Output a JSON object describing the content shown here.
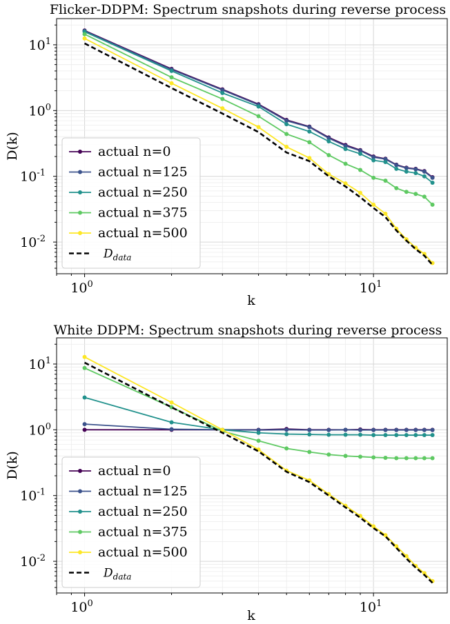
{
  "chart_data": [
    {
      "type": "line",
      "title": "Flicker-DDPM: Spectrum snapshots during reverse process",
      "xlabel": "k",
      "ylabel": "D(k)",
      "xscale": "log",
      "yscale": "log",
      "xlim": [
        0.8,
        18
      ],
      "ylim": [
        0.0033,
        25
      ],
      "xticks": [
        {
          "base": "10",
          "exp": "0",
          "value": 1
        },
        {
          "base": "10",
          "exp": "1",
          "value": 10
        }
      ],
      "yticks": [
        {
          "base": "10",
          "exp": "-2",
          "value": 0.01
        },
        {
          "base": "10",
          "exp": "-1",
          "value": 0.1
        },
        {
          "base": "10",
          "exp": "0",
          "value": 1
        },
        {
          "base": "10",
          "exp": "1",
          "value": 10
        }
      ],
      "grid": true,
      "legend_position": "lower-left",
      "x": [
        1,
        2,
        3,
        4,
        5,
        6,
        7,
        8,
        9,
        10,
        11,
        12,
        13,
        14,
        15,
        16
      ],
      "series": [
        {
          "name": "actual n=0",
          "color": "#440154",
          "style": "solid-markers",
          "values": [
            16.5,
            4.3,
            2.1,
            1.25,
            0.72,
            0.57,
            0.39,
            0.3,
            0.25,
            0.2,
            0.185,
            0.15,
            0.135,
            0.13,
            0.12,
            0.097
          ]
        },
        {
          "name": "actual n=125",
          "color": "#3b528b",
          "style": "solid-markers",
          "values": [
            16.2,
            4.2,
            2.05,
            1.22,
            0.7,
            0.56,
            0.38,
            0.29,
            0.245,
            0.195,
            0.182,
            0.148,
            0.133,
            0.128,
            0.118,
            0.095
          ]
        },
        {
          "name": "actual n=250",
          "color": "#21918c",
          "style": "solid-markers",
          "values": [
            15.8,
            4.0,
            1.85,
            1.15,
            0.62,
            0.48,
            0.34,
            0.26,
            0.22,
            0.175,
            0.165,
            0.13,
            0.118,
            0.112,
            0.1,
            0.08
          ]
        },
        {
          "name": "actual n=375",
          "color": "#5ec962",
          "style": "solid-markers",
          "values": [
            14.5,
            3.2,
            1.5,
            0.82,
            0.44,
            0.33,
            0.21,
            0.155,
            0.125,
            0.095,
            0.086,
            0.066,
            0.058,
            0.054,
            0.049,
            0.037
          ]
        },
        {
          "name": "actual n=500",
          "color": "#fde725",
          "style": "solid-markers",
          "values": [
            12.5,
            2.6,
            1.08,
            0.56,
            0.28,
            0.19,
            0.108,
            0.078,
            0.056,
            0.037,
            0.027,
            0.016,
            0.011,
            0.0082,
            0.0066,
            0.0048
          ]
        },
        {
          "name": "D_data",
          "label_main": "D",
          "label_sub": "data",
          "color": "#000000",
          "style": "dashed",
          "values": [
            10.5,
            2.2,
            0.9,
            0.47,
            0.23,
            0.17,
            0.1,
            0.07,
            0.048,
            0.033,
            0.024,
            0.015,
            0.0105,
            0.0078,
            0.0062,
            0.0045
          ]
        }
      ]
    },
    {
      "type": "line",
      "title": "White DDPM: Spectrum snapshots during reverse process",
      "xlabel": "k",
      "ylabel": "D(k)",
      "xscale": "log",
      "yscale": "log",
      "xlim": [
        0.8,
        18
      ],
      "ylim": [
        0.0033,
        25
      ],
      "xticks": [
        {
          "base": "10",
          "exp": "0",
          "value": 1
        },
        {
          "base": "10",
          "exp": "1",
          "value": 10
        }
      ],
      "yticks": [
        {
          "base": "10",
          "exp": "-2",
          "value": 0.01
        },
        {
          "base": "10",
          "exp": "-1",
          "value": 0.1
        },
        {
          "base": "10",
          "exp": "0",
          "value": 1
        },
        {
          "base": "10",
          "exp": "1",
          "value": 10
        }
      ],
      "grid": true,
      "legend_position": "lower-left",
      "x": [
        1,
        2,
        3,
        4,
        5,
        6,
        7,
        8,
        9,
        10,
        11,
        12,
        13,
        14,
        15,
        16
      ],
      "series": [
        {
          "name": "actual n=0",
          "color": "#440154",
          "style": "solid-markers",
          "values": [
            1.0,
            1.0,
            1.0,
            1.0,
            1.03,
            1.0,
            1.0,
            1.0,
            1.01,
            1.0,
            1.0,
            1.0,
            1.0,
            1.0,
            1.0,
            1.0
          ]
        },
        {
          "name": "actual n=125",
          "color": "#3b528b",
          "style": "solid-markers",
          "values": [
            1.22,
            1.02,
            1.0,
            0.99,
            1.0,
            0.99,
            0.99,
            1.0,
            0.99,
            0.99,
            0.99,
            0.99,
            0.99,
            0.99,
            0.99,
            0.99
          ]
        },
        {
          "name": "actual n=250",
          "color": "#21918c",
          "style": "solid-markers",
          "values": [
            3.1,
            1.3,
            1.0,
            0.9,
            0.86,
            0.85,
            0.84,
            0.84,
            0.84,
            0.83,
            0.83,
            0.83,
            0.83,
            0.83,
            0.83,
            0.83
          ]
        },
        {
          "name": "actual n=375",
          "color": "#5ec962",
          "style": "solid-markers",
          "values": [
            8.7,
            2.2,
            0.95,
            0.68,
            0.52,
            0.46,
            0.42,
            0.4,
            0.39,
            0.38,
            0.375,
            0.37,
            0.37,
            0.37,
            0.37,
            0.37
          ]
        },
        {
          "name": "actual n=500",
          "color": "#fde725",
          "style": "solid-markers",
          "values": [
            12.8,
            2.6,
            1.0,
            0.5,
            0.24,
            0.17,
            0.105,
            0.07,
            0.049,
            0.034,
            0.025,
            0.017,
            0.012,
            0.0085,
            0.0066,
            0.005
          ]
        },
        {
          "name": "D_data",
          "label_main": "D",
          "label_sub": "data",
          "color": "#000000",
          "style": "dashed",
          "values": [
            10.5,
            2.2,
            0.9,
            0.47,
            0.23,
            0.16,
            0.1,
            0.066,
            0.046,
            0.032,
            0.024,
            0.016,
            0.011,
            0.008,
            0.0062,
            0.0047
          ]
        }
      ]
    }
  ]
}
